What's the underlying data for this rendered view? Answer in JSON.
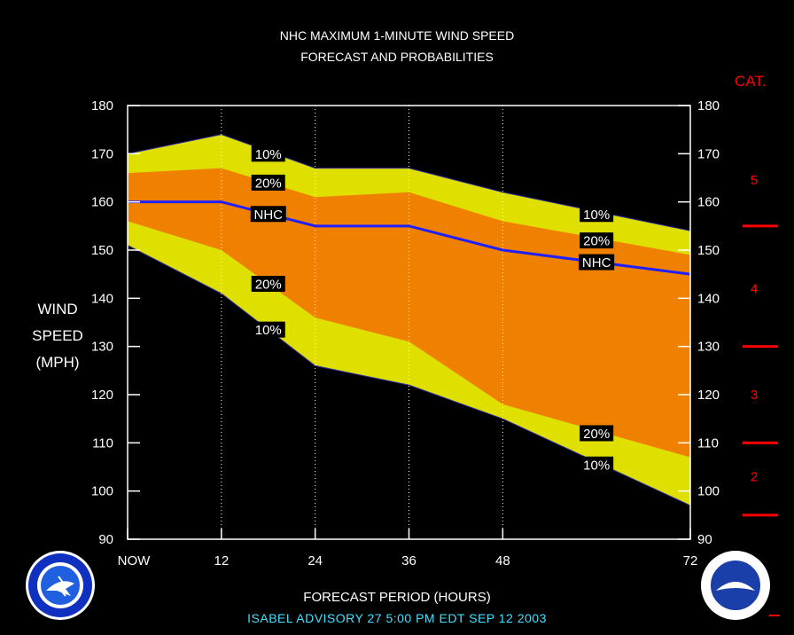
{
  "title_line1": "NHC MAXIMUM 1-MINUTE WIND SPEED",
  "title_line2": "FORECAST AND PROBABILITIES",
  "cat_title": "CAT.",
  "ylabel_lines": [
    "WIND",
    "SPEED",
    "(MPH)"
  ],
  "xlabel": "FORECAST PERIOD (HOURS)",
  "advisory": "ISABEL   ADVISORY  27  5:00  PM  EDT  SEP  12  2003",
  "colors": {
    "outer_band": "#e0e000",
    "inner_band": "#f08000",
    "nhc_line": "#2020ff",
    "category": "#ff0000",
    "advisory": "#40e0ff"
  },
  "chart_data": {
    "type": "area",
    "title": "NHC MAXIMUM 1-MINUTE WIND SPEED FORECAST AND PROBABILITIES",
    "xlabel": "FORECAST PERIOD (HOURS)",
    "ylabel": "WIND SPEED (MPH)",
    "x": [
      0,
      12,
      24,
      36,
      48,
      72
    ],
    "x_tick_labels": [
      "NOW",
      "12",
      "24",
      "36",
      "48",
      "72"
    ],
    "xlim": [
      0,
      72
    ],
    "ylim": [
      90,
      180
    ],
    "y_ticks": [
      90,
      100,
      110,
      120,
      130,
      140,
      150,
      160,
      170,
      180
    ],
    "series": [
      {
        "name": "10%",
        "role": "upper",
        "values": [
          170,
          174,
          167,
          167,
          162,
          154
        ]
      },
      {
        "name": "20%",
        "role": "upper",
        "values": [
          166,
          167,
          161,
          162,
          156,
          149
        ]
      },
      {
        "name": "NHC",
        "role": "center",
        "values": [
          160,
          160,
          155,
          155,
          150,
          145
        ]
      },
      {
        "name": "20%",
        "role": "lower",
        "values": [
          156,
          150,
          136,
          131,
          118,
          107
        ]
      },
      {
        "name": "10%",
        "role": "lower",
        "values": [
          151,
          141,
          126,
          122,
          115,
          97
        ]
      }
    ],
    "labels": [
      {
        "text": "10%",
        "x": 18,
        "y": 170
      },
      {
        "text": "20%",
        "x": 18,
        "y": 164
      },
      {
        "text": "NHC",
        "x": 18,
        "y": 157.5
      },
      {
        "text": "20%",
        "x": 18,
        "y": 143
      },
      {
        "text": "10%",
        "x": 18,
        "y": 133.5
      },
      {
        "text": "10%",
        "x": 60,
        "y": 157.5
      },
      {
        "text": "20%",
        "x": 60,
        "y": 152
      },
      {
        "text": "NHC",
        "x": 60,
        "y": 147.5
      },
      {
        "text": "20%",
        "x": 60,
        "y": 112
      },
      {
        "text": "10%",
        "x": 60,
        "y": 105.5
      }
    ],
    "categories": [
      {
        "label": "5",
        "y": 164.5
      },
      {
        "label": "4",
        "y": 142
      },
      {
        "label": "3",
        "y": 120
      },
      {
        "label": "2",
        "y": 103
      }
    ],
    "category_boundaries": [
      155,
      130,
      110,
      95
    ],
    "grid": "vertical dotted at forecast hours"
  }
}
